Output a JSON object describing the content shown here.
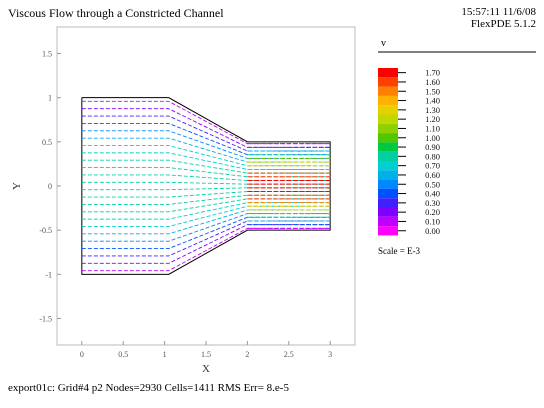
{
  "header": {
    "title": "Viscous Flow through a Constricted Channel",
    "timestamp": "15:57:11 11/6/08",
    "version": "FlexPDE 5.1.2"
  },
  "footer": {
    "status": "export01c:  Grid#4  p2  Nodes=2930 Cells=1411 RMS Err= 8.e-5"
  },
  "chart_data": {
    "type": "vector",
    "title": "Viscous Flow through a Constricted Channel",
    "xlabel": "X",
    "ylabel": "Y",
    "xlim": [
      -0.3,
      3.3
    ],
    "ylim": [
      -1.8,
      1.8
    ],
    "xticks": [
      "0",
      "0.5",
      "1",
      "1.5",
      "2",
      "2.5",
      "3"
    ],
    "xtick_values": [
      0,
      0.5,
      1,
      1.5,
      2,
      2.5,
      3
    ],
    "yticks": [
      "1.5",
      "1",
      "0.5",
      "0",
      "-0.5",
      "-1",
      "-1.5"
    ],
    "ytick_values": [
      1.5,
      1,
      0.5,
      0,
      -0.5,
      -1,
      -1.5
    ],
    "grid": false,
    "domain_boundary": [
      [
        0,
        1
      ],
      [
        1.05,
        1
      ],
      [
        2,
        0.5
      ],
      [
        3,
        0.5
      ],
      [
        3,
        -0.5
      ],
      [
        2,
        -0.5
      ],
      [
        1.05,
        -1
      ],
      [
        0,
        -1
      ],
      [
        0,
        1
      ]
    ],
    "flow": {
      "inlet_x": 0,
      "inlet_x_end": 1.05,
      "constriction_x": 2,
      "outlet_x": 3,
      "half_width_wide": 1,
      "half_width_narrow": 0.5,
      "rows": 24
    },
    "legend": {
      "variable": "v",
      "position": "right",
      "scale_note": "Scale = E-3",
      "levels": [
        "1.70",
        "1.60",
        "1.50",
        "1.40",
        "1.30",
        "1.20",
        "1.10",
        "1.00",
        "0.90",
        "0.80",
        "0.70",
        "0.60",
        "0.50",
        "0.40",
        "0.30",
        "0.20",
        "0.10",
        "0.00"
      ],
      "colors": [
        "#ff0000",
        "#ff4000",
        "#ff8000",
        "#ffb000",
        "#e8d000",
        "#c0d800",
        "#90d000",
        "#50c800",
        "#00c840",
        "#00d0a0",
        "#00d0d0",
        "#00b0e8",
        "#0088ff",
        "#0050ff",
        "#4020ff",
        "#8000ff",
        "#c000ff",
        "#ff00ff"
      ]
    }
  }
}
